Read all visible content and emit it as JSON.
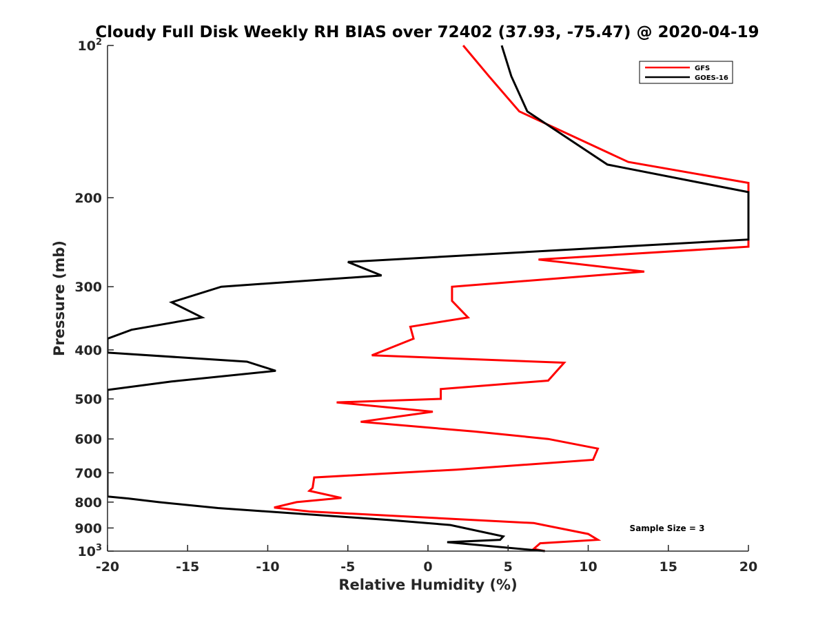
{
  "chart_data": {
    "type": "line",
    "title": "Cloudy Full Disk Weekly RH BIAS over 72402 (37.93, -75.47) @ 2020-04-19",
    "xlabel": "Relative Humidity (%)",
    "ylabel": "Pressure (mb)",
    "xlim": [
      -20,
      20
    ],
    "ylim": [
      100,
      1000
    ],
    "y_scale": "log",
    "y_reversed": true,
    "grid": false,
    "legend_position": "top-right",
    "annotation": "Sample Size = 3",
    "x_ticks": [
      "-20",
      "-15",
      "-10",
      "-5",
      "0",
      "5",
      "10",
      "15",
      "20"
    ],
    "y_ticks": [
      {
        "value": 100,
        "base": "10",
        "exp": "2"
      },
      {
        "value": 200,
        "label": "200"
      },
      {
        "value": 300,
        "label": "300"
      },
      {
        "value": 400,
        "label": "400"
      },
      {
        "value": 500,
        "label": "500"
      },
      {
        "value": 600,
        "label": "600"
      },
      {
        "value": 700,
        "label": "700"
      },
      {
        "value": 800,
        "label": "800"
      },
      {
        "value": 900,
        "label": "900"
      },
      {
        "value": 1000,
        "base": "10",
        "exp": "3"
      }
    ],
    "series": [
      {
        "name": "GFS",
        "color": "#ff0000",
        "points": [
          [
            2.2,
            100
          ],
          [
            3.8,
            115
          ],
          [
            5.7,
            135
          ],
          [
            12.5,
            170
          ],
          [
            20,
            187
          ],
          [
            20,
            250
          ],
          [
            6.9,
            265
          ],
          [
            13.5,
            280
          ],
          [
            1.5,
            300
          ],
          [
            1.5,
            320
          ],
          [
            2.5,
            345
          ],
          [
            -1.1,
            360
          ],
          [
            -0.9,
            380
          ],
          [
            -3.5,
            410
          ],
          [
            8.5,
            424
          ],
          [
            7.5,
            460
          ],
          [
            0.8,
            478
          ],
          [
            0.8,
            500
          ],
          [
            -5.7,
            508
          ],
          [
            0.3,
            530
          ],
          [
            -4.2,
            555
          ],
          [
            2.9,
            580
          ],
          [
            7.5,
            600
          ],
          [
            10.6,
            627
          ],
          [
            10.3,
            660
          ],
          [
            1.8,
            690
          ],
          [
            -7.1,
            715
          ],
          [
            -7.2,
            750
          ],
          [
            -7.4,
            760
          ],
          [
            -5.4,
            785
          ],
          [
            -8.2,
            800
          ],
          [
            -9.6,
            820
          ],
          [
            -7.4,
            835
          ],
          [
            6.6,
            880
          ],
          [
            10.0,
            925
          ],
          [
            10.6,
            950
          ],
          [
            7.0,
            965
          ],
          [
            6.6,
            990
          ],
          [
            7.3,
            1000
          ]
        ]
      },
      {
        "name": "GOES-16",
        "color": "#000000",
        "points": [
          [
            4.6,
            100
          ],
          [
            5.2,
            115
          ],
          [
            6.2,
            135
          ],
          [
            11.2,
            172
          ],
          [
            20,
            195
          ],
          [
            20,
            242
          ],
          [
            -5.0,
            268
          ],
          [
            -2.9,
            285
          ],
          [
            -12.9,
            300
          ],
          [
            -16.0,
            322
          ],
          [
            -14.1,
            345
          ],
          [
            -18.5,
            365
          ],
          [
            -20,
            380
          ],
          [
            -20,
            405
          ],
          [
            -11.3,
            422
          ],
          [
            -9.5,
            440
          ],
          [
            -16.0,
            462
          ],
          [
            -20,
            480
          ],
          [
            -20,
            780
          ],
          [
            -18.7,
            787
          ],
          [
            -16.8,
            800
          ],
          [
            -13.1,
            822
          ],
          [
            -2.4,
            868
          ],
          [
            1.4,
            888
          ],
          [
            4.7,
            935
          ],
          [
            4.5,
            950
          ],
          [
            1.2,
            960
          ],
          [
            7.3,
            1000
          ]
        ]
      }
    ]
  }
}
